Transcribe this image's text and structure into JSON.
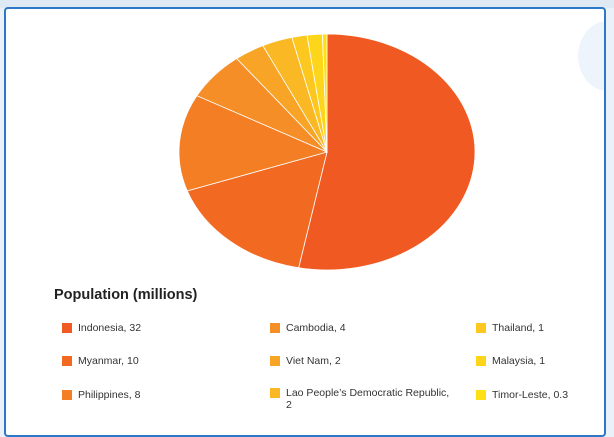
{
  "chart_data": {
    "type": "pie",
    "legend_title": "Population (millions)",
    "slices": [
      {
        "label": "Indonesia, 32",
        "value": 32,
        "color": "#f05a22"
      },
      {
        "label": "Myanmar, 10",
        "value": 10,
        "color": "#f26a22"
      },
      {
        "label": "Philippines, 8",
        "value": 8,
        "color": "#f47e24"
      },
      {
        "label": "Cambodia, 4",
        "value": 4,
        "color": "#f58e26"
      },
      {
        "label": "Viet Nam, 2",
        "value": 2,
        "color": "#f8a426"
      },
      {
        "label": "Lao People’s Democratic Republic, 2",
        "value": 2,
        "color": "#fab824"
      },
      {
        "label": "Thailand, 1",
        "value": 1,
        "color": "#fcc820"
      },
      {
        "label": "Malaysia, 1",
        "value": 1,
        "color": "#fdd51a"
      },
      {
        "label": "Timor-Leste, 0.3",
        "value": 0.3,
        "color": "#fee016"
      }
    ],
    "legend_placement": "bottom"
  }
}
